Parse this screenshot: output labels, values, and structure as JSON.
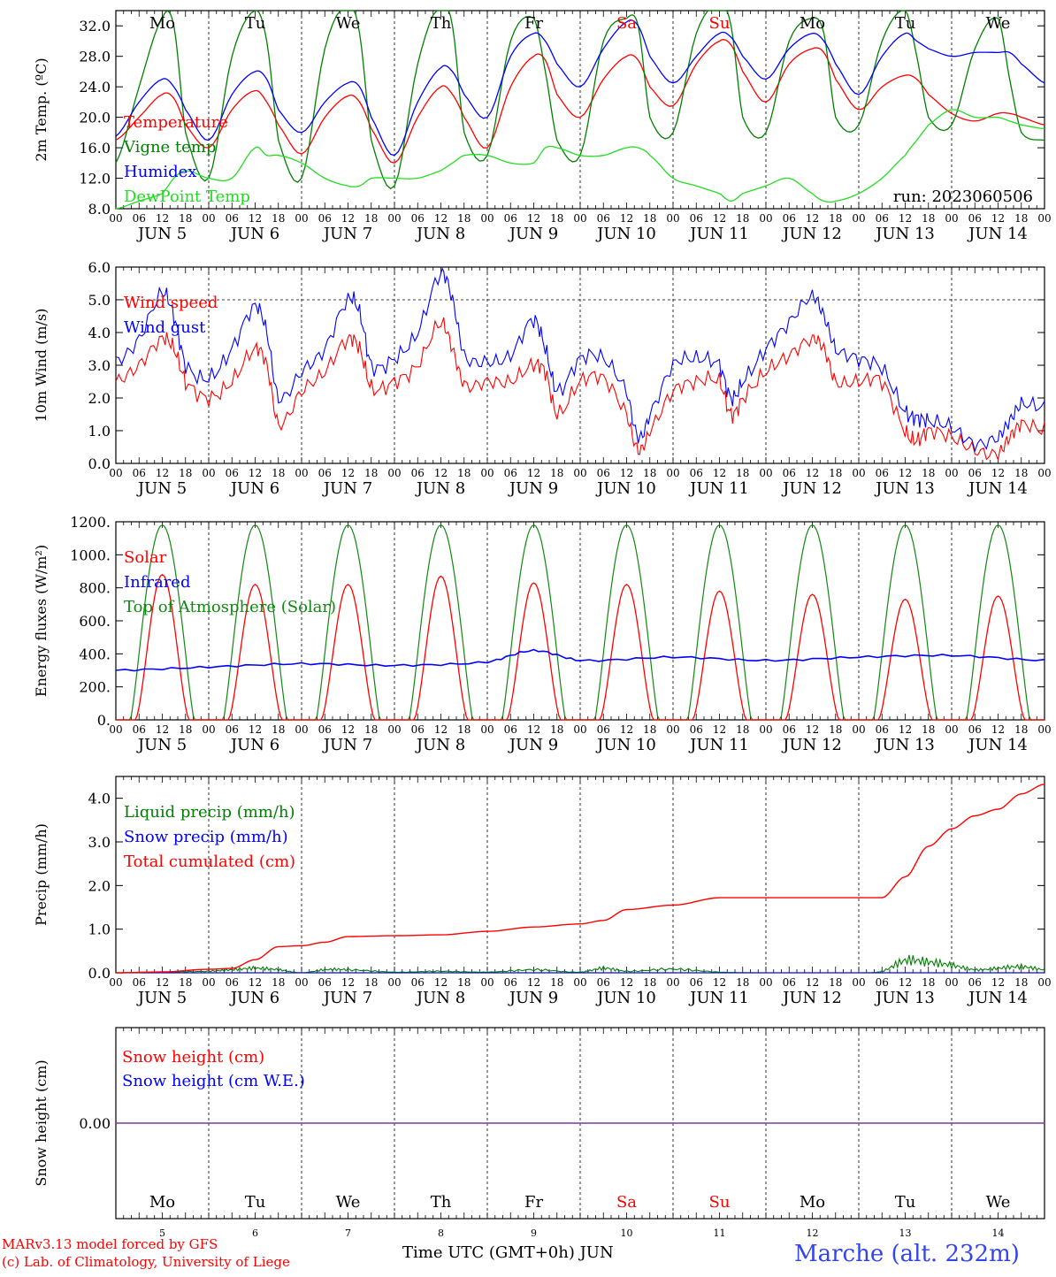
{
  "colors": {
    "temperature": "#ff0000",
    "vigne": "#008000",
    "humidex": "#0000ff",
    "dewpoint": "#22dd22",
    "solar": "#ff0000",
    "infrared": "#0000ff",
    "toa": "#118811",
    "snow_we": "#7a3aa0"
  },
  "run_label": "run: 2023060506",
  "day_of_week": [
    "Mo",
    "Tu",
    "We",
    "Th",
    "Fr",
    "Sa",
    "Su",
    "Mo",
    "Tu",
    "We"
  ],
  "weekend_days": [
    5,
    6
  ],
  "hour_ticks": [
    "00",
    "06",
    "12",
    "18"
  ],
  "end_tick": "00",
  "date_labels": [
    "JUN  5",
    "JUN  6",
    "JUN  7",
    "JUN  8",
    "JUN  9",
    "JUN 10",
    "JUN 11",
    "JUN 12",
    "JUN 13",
    "JUN 14"
  ],
  "bottom_day_numbers": [
    "5",
    "6",
    "7",
    "8",
    "9",
    "10",
    "11",
    "12",
    "13",
    "14"
  ],
  "footer": {
    "credit_line1": "MARv3.13 model forced by GFS",
    "credit_line2": "(c) Lab. of Climatology, University of Liege",
    "time_axis": "Time UTC (GMT+0h) JUN",
    "station": "Marche (alt. 232m)"
  },
  "chart_data": [
    {
      "type": "line",
      "ylabel": "2m Temp. (ºC)",
      "ylim": [
        8,
        34
      ],
      "yticks": [
        "8.0",
        "12.0",
        "16.0",
        "20.0",
        "24.0",
        "28.0",
        "32.0"
      ],
      "x_unit": "hours since JUN 5 00 UTC",
      "x": [
        0,
        6,
        12,
        15,
        18,
        24,
        30,
        36,
        39,
        42,
        48,
        54,
        60,
        63,
        66,
        72,
        78,
        84,
        87,
        90,
        96,
        102,
        108,
        111,
        114,
        120,
        126,
        132,
        135,
        138,
        144,
        150,
        156,
        159,
        162,
        168,
        174,
        180,
        183,
        186,
        192,
        198,
        204,
        207,
        210,
        216,
        222,
        228,
        231,
        234,
        240
      ],
      "series": [
        {
          "name": "Temperature",
          "color": "#ff0000",
          "values": [
            17,
            20,
            23,
            22.5,
            19,
            16,
            21,
            23.5,
            22,
            19,
            15.2,
            20,
            22.8,
            22,
            18.5,
            14,
            20,
            24,
            23,
            20,
            16,
            24,
            28,
            27.5,
            23,
            20,
            25,
            28,
            27.5,
            24,
            21.5,
            27,
            30,
            29.5,
            26,
            22,
            27,
            29,
            28.5,
            25,
            21,
            24,
            25.5,
            25,
            23,
            20.5,
            19.5,
            20.5,
            20.5,
            20,
            19
          ]
        },
        {
          "name": "Vigne temp",
          "color": "#008000",
          "values": [
            14,
            24,
            33,
            32,
            18,
            12,
            28,
            34,
            30,
            17,
            12,
            29,
            35,
            31,
            17,
            11,
            27,
            35,
            32,
            18,
            15,
            30,
            33,
            26,
            17,
            15,
            30,
            33,
            32,
            20,
            18,
            31,
            35,
            32,
            20,
            18,
            30,
            33,
            31,
            20,
            19,
            30,
            34,
            28,
            20,
            19,
            29,
            33,
            25,
            18,
            17
          ]
        },
        {
          "name": "Humidex",
          "color": "#0000ff",
          "values": [
            17.5,
            22,
            25,
            24,
            21,
            17,
            23,
            26,
            25,
            21,
            18,
            22,
            24.5,
            24,
            20,
            15,
            22,
            26.5,
            26,
            23,
            20,
            28,
            31,
            30,
            27,
            24,
            29,
            32.5,
            32,
            28,
            24.5,
            28,
            31,
            30.5,
            28,
            25,
            29,
            31,
            30,
            27,
            23,
            28,
            31,
            30,
            29,
            28,
            28.5,
            28.5,
            28.5,
            27,
            24.5
          ]
        },
        {
          "name": "DewPoint Temp",
          "color": "#22dd22",
          "values": [
            8,
            9,
            10,
            12,
            13,
            12,
            12,
            16,
            15,
            15,
            14,
            12,
            11,
            11,
            12,
            12,
            12,
            13,
            14,
            15,
            15,
            14,
            14,
            16,
            16,
            15,
            15,
            16,
            16,
            15,
            12,
            11,
            10,
            9,
            10,
            11,
            12,
            10,
            9,
            9,
            10,
            12,
            15,
            17,
            19,
            21,
            20,
            20,
            19.5,
            19,
            18.5
          ]
        }
      ]
    },
    {
      "type": "line",
      "ylabel": "10m Wind (m/s)",
      "ylim": [
        0,
        6
      ],
      "yticks": [
        "0.0",
        "1.0",
        "2.0",
        "3.0",
        "4.0",
        "5.0",
        "6.0"
      ],
      "x": [
        0,
        6,
        12,
        15,
        18,
        24,
        30,
        36,
        39,
        42,
        48,
        54,
        60,
        63,
        66,
        72,
        78,
        84,
        87,
        90,
        96,
        102,
        108,
        111,
        114,
        120,
        126,
        132,
        135,
        138,
        144,
        150,
        156,
        159,
        162,
        168,
        174,
        180,
        183,
        186,
        192,
        198,
        204,
        207,
        210,
        216,
        222,
        228,
        231,
        234,
        240
      ],
      "series": [
        {
          "name": "Wind speed",
          "color": "#ff0000",
          "values": [
            2.5,
            3,
            3.8,
            3.5,
            2.5,
            2,
            2.5,
            3.5,
            3,
            1.2,
            2.2,
            2.8,
            3.8,
            3.5,
            2.3,
            2.5,
            3,
            4.3,
            3.5,
            2.4,
            2.5,
            2.5,
            3,
            2.8,
            1.5,
            2.5,
            2.6,
            1.5,
            0.4,
            1,
            2.2,
            2.5,
            2.5,
            1.5,
            2,
            2.8,
            3.3,
            3.8,
            3.5,
            2.5,
            2.5,
            2.5,
            1,
            0.7,
            1,
            0.8,
            0.4,
            0.3,
            0.8,
            1.2,
            1
          ]
        },
        {
          "name": "Wind gust",
          "color": "#0000ff",
          "values": [
            3.1,
            3.8,
            5.2,
            4.5,
            3,
            2.6,
            3.5,
            4.8,
            4,
            2,
            2.8,
            3.5,
            5,
            4.6,
            3,
            3.2,
            4,
            5.8,
            5,
            3.3,
            3.1,
            3.3,
            4.4,
            3.5,
            2.2,
            3.2,
            3.2,
            2.2,
            0.8,
            1.5,
            3,
            3.2,
            3,
            2,
            2.5,
            3.5,
            4.3,
            5.1,
            4.5,
            3.5,
            3.2,
            2.9,
            1.6,
            1.4,
            1.3,
            1.1,
            0.6,
            0.8,
            1.3,
            1.8,
            1.7
          ]
        }
      ]
    },
    {
      "type": "line",
      "ylabel": "Energy fluxes (W/m²)",
      "ylim": [
        0,
        1200
      ],
      "yticks": [
        "0.",
        "200.",
        "400.",
        "600.",
        "800.",
        "1000.",
        "1200."
      ],
      "series": [
        {
          "name": "Solar",
          "color": "#ff0000",
          "daily_peak_values": [
            880,
            820,
            820,
            870,
            830,
            820,
            780,
            760,
            730,
            750
          ]
        },
        {
          "name": "Infrared",
          "color": "#0000ff",
          "x": [
            0,
            24,
            48,
            72,
            96,
            108,
            120,
            144,
            168,
            192,
            216,
            240
          ],
          "values": [
            300,
            320,
            340,
            330,
            350,
            420,
            360,
            380,
            360,
            380,
            390,
            360
          ]
        },
        {
          "name": "Top of Atmosphere (Solar)",
          "color": "#118811",
          "daily_peak_values": [
            1180,
            1180,
            1180,
            1180,
            1180,
            1180,
            1180,
            1180,
            1180,
            1180
          ]
        }
      ]
    },
    {
      "type": "line",
      "ylabel": "Precip (mm/h)",
      "ylim": [
        0,
        4.5
      ],
      "yticks": [
        "0.0",
        "1.0",
        "2.0",
        "3.0",
        "4.0"
      ],
      "x": [
        0,
        12,
        24,
        30,
        36,
        42,
        48,
        54,
        60,
        72,
        84,
        96,
        108,
        120,
        126,
        132,
        144,
        156,
        168,
        180,
        192,
        198,
        204,
        210,
        216,
        222,
        228,
        234,
        240
      ],
      "series": [
        {
          "name": "Liquid precip (mm/h)",
          "color": "#008000",
          "values": [
            0,
            0.02,
            0.05,
            0.1,
            0.15,
            0.1,
            0,
            0.1,
            0.1,
            0.02,
            0.05,
            0.02,
            0.1,
            0.02,
            0.15,
            0.05,
            0.12,
            0.02,
            0,
            0,
            0,
            0.05,
            0.4,
            0.35,
            0.25,
            0.1,
            0.15,
            0.2,
            0.1
          ]
        },
        {
          "name": "Snow precip (mm/h)",
          "color": "#0000ff",
          "values": [
            0,
            0,
            0,
            0,
            0,
            0,
            0,
            0,
            0,
            0,
            0,
            0,
            0,
            0,
            0,
            0,
            0,
            0,
            0,
            0,
            0,
            0,
            0,
            0,
            0,
            0,
            0,
            0,
            0
          ]
        },
        {
          "name": "Total cumulated (cm)",
          "color": "#ff0000",
          "values": [
            0,
            0.02,
            0.08,
            0.1,
            0.3,
            0.6,
            0.62,
            0.7,
            0.83,
            0.85,
            0.87,
            0.95,
            1.05,
            1.12,
            1.2,
            1.45,
            1.55,
            1.72,
            1.72,
            1.72,
            1.72,
            1.72,
            2.2,
            2.9,
            3.3,
            3.6,
            3.75,
            4.1,
            4.32
          ]
        }
      ]
    },
    {
      "type": "line",
      "ylabel": "Snow height (cm)",
      "yticks": [
        "0.00"
      ],
      "series": [
        {
          "name": "Snow height (cm)",
          "color": "#ff0000",
          "values": [
            0,
            0
          ]
        },
        {
          "name": "Snow height (cm W.E.)",
          "color": "#0000ff",
          "values": [
            0,
            0
          ]
        }
      ]
    }
  ]
}
